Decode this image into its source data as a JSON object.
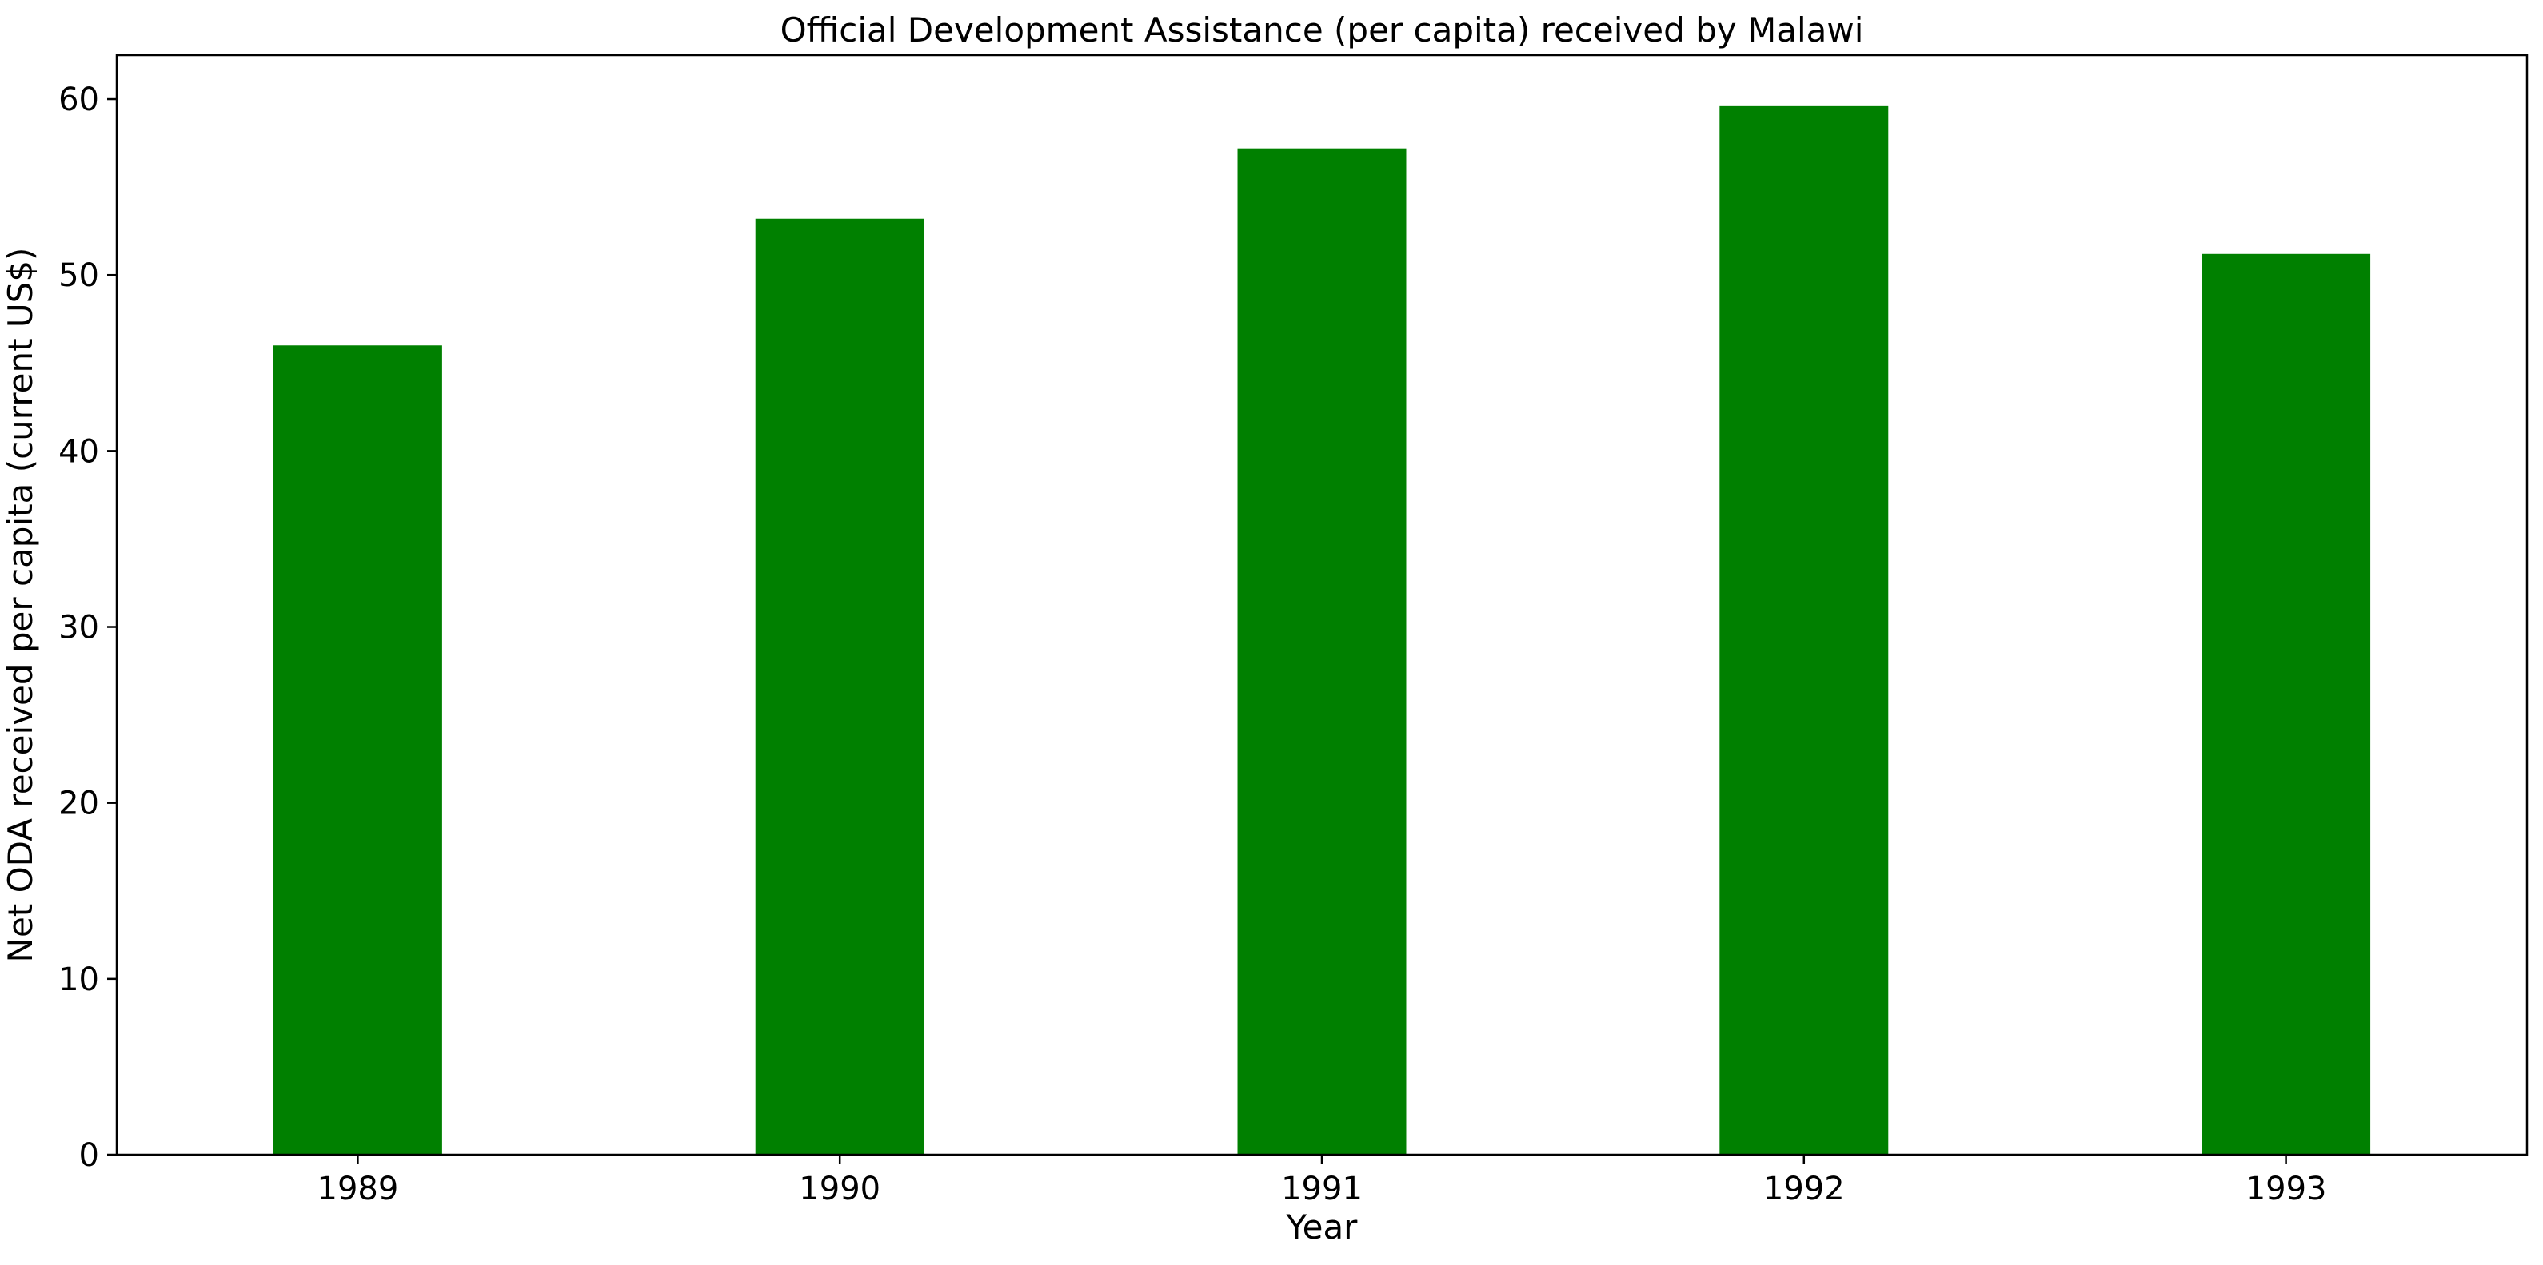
{
  "chart_data": {
    "type": "bar",
    "title": "Official Development Assistance (per capita) received by Malawi",
    "xlabel": "Year",
    "ylabel": "Net ODA received per capita (current US$)",
    "categories": [
      "1989",
      "1990",
      "1991",
      "1992",
      "1993"
    ],
    "values": [
      46.0,
      53.2,
      57.2,
      59.6,
      51.2
    ],
    "ylim": [
      0,
      62.5
    ],
    "yticks": [
      0,
      10,
      20,
      30,
      40,
      50,
      60
    ],
    "bar_color": "#008000",
    "grid": false,
    "legend": "none"
  }
}
